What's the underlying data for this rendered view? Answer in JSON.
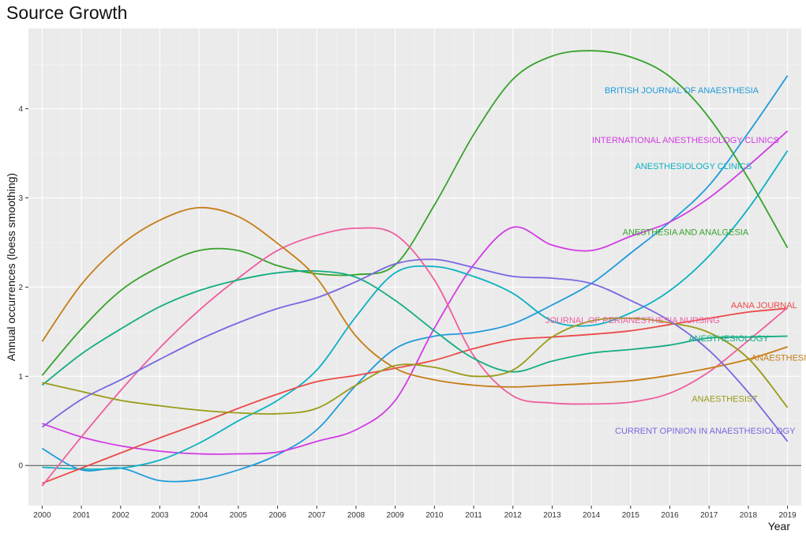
{
  "chart_data": {
    "type": "line",
    "title": "Source Growth",
    "xlabel": "Year",
    "ylabel": "Annual occurrences (loess smoothing)",
    "xlim": [
      1999.65,
      2019.35
    ],
    "ylim": [
      -0.45,
      4.9
    ],
    "x": [
      2000,
      2001,
      2002,
      2003,
      2004,
      2005,
      2006,
      2007,
      2008,
      2009,
      2010,
      2011,
      2012,
      2013,
      2014,
      2015,
      2016,
      2017,
      2018,
      2019
    ],
    "x_tick_labels": [
      "2000",
      "2001",
      "2002",
      "2003",
      "2004",
      "2005",
      "2006",
      "2007",
      "2008",
      "2009",
      "2010",
      "2011",
      "2012",
      "2013",
      "2014",
      "2015",
      "2016",
      "2017",
      "2018",
      "2019"
    ],
    "y_ticks": [
      0,
      1,
      2,
      3,
      4
    ],
    "y_tick_labels": [
      "0",
      "1",
      "2",
      "3",
      "4"
    ],
    "reference_line_y": 0,
    "grid": true,
    "series": [
      {
        "name": "BRITISH JOURNAL OF ANAESTHESIA",
        "color": "#1F9BDB",
        "label_x": 2016.3,
        "label_y": 4.21,
        "values": [
          0.19,
          -0.05,
          -0.03,
          -0.17,
          -0.16,
          -0.05,
          0.12,
          0.4,
          0.9,
          1.31,
          1.45,
          1.49,
          1.59,
          1.8,
          2.04,
          2.38,
          2.73,
          3.14,
          3.73,
          4.37
        ]
      },
      {
        "name": "INTERNATIONAL ANESTHESIOLOGY CLINICS",
        "color": "#D23BE4",
        "label_x": 2016.4,
        "label_y": 3.65,
        "values": [
          0.47,
          0.32,
          0.22,
          0.16,
          0.13,
          0.13,
          0.15,
          0.27,
          0.4,
          0.73,
          1.54,
          2.25,
          2.67,
          2.47,
          2.41,
          2.57,
          2.73,
          3.0,
          3.36,
          3.75
        ]
      },
      {
        "name": "ANESTHESIOLOGY CLINICS",
        "color": "#0CB1C4",
        "label_x": 2016.6,
        "label_y": 3.36,
        "values": [
          -0.02,
          -0.04,
          -0.03,
          0.06,
          0.25,
          0.5,
          0.73,
          1.07,
          1.67,
          2.16,
          2.23,
          2.12,
          1.93,
          1.62,
          1.57,
          1.71,
          1.96,
          2.35,
          2.88,
          3.53
        ]
      },
      {
        "name": "ANESTHESIA AND ANALGESIA",
        "color": "#35A32A",
        "label_x": 2016.4,
        "label_y": 2.62,
        "values": [
          1.01,
          1.53,
          1.96,
          2.23,
          2.41,
          2.41,
          2.24,
          2.15,
          2.14,
          2.25,
          2.92,
          3.71,
          4.33,
          4.59,
          4.65,
          4.58,
          4.36,
          3.9,
          3.22,
          2.44
        ]
      },
      {
        "name": "AANA JOURNAL",
        "color": "#EB4A48",
        "label_x": 2018.4,
        "label_y": 1.8,
        "values": [
          -0.2,
          -0.03,
          0.14,
          0.31,
          0.47,
          0.64,
          0.8,
          0.94,
          1.01,
          1.09,
          1.18,
          1.31,
          1.41,
          1.44,
          1.47,
          1.51,
          1.58,
          1.65,
          1.72,
          1.76
        ]
      },
      {
        "name": "JOURNAL OF PERIANESTHESIA NURSING",
        "color": "#EE5EA0",
        "label_x": 2015.05,
        "label_y": 1.63,
        "values": [
          -0.23,
          0.32,
          0.84,
          1.32,
          1.74,
          2.1,
          2.41,
          2.58,
          2.66,
          2.59,
          2.08,
          1.23,
          0.78,
          0.7,
          0.69,
          0.71,
          0.81,
          1.05,
          1.4,
          1.77
        ]
      },
      {
        "name": "ANESTHESIOLOGY",
        "color": "#12AD84",
        "label_x": 2017.5,
        "label_y": 1.43,
        "values": [
          0.9,
          1.25,
          1.53,
          1.78,
          1.96,
          2.08,
          2.16,
          2.18,
          2.11,
          1.85,
          1.51,
          1.2,
          1.05,
          1.17,
          1.26,
          1.3,
          1.35,
          1.43,
          1.44,
          1.45
        ]
      },
      {
        "name": "ANAESTHESIA",
        "color": "#C67D16",
        "label_x": 2018.85,
        "label_y": 1.21,
        "values": [
          1.39,
          2.03,
          2.47,
          2.75,
          2.89,
          2.79,
          2.49,
          2.1,
          1.45,
          1.09,
          0.96,
          0.9,
          0.88,
          0.9,
          0.92,
          0.95,
          1.01,
          1.09,
          1.19,
          1.33
        ]
      },
      {
        "name": "ANAESTHESIST",
        "color": "#9B9B18",
        "label_x": 2017.4,
        "label_y": 0.75,
        "values": [
          0.93,
          0.83,
          0.73,
          0.67,
          0.62,
          0.59,
          0.58,
          0.64,
          0.9,
          1.12,
          1.1,
          1.0,
          1.07,
          1.44,
          1.62,
          1.65,
          1.6,
          1.49,
          1.2,
          0.65
        ]
      },
      {
        "name": "CURRENT OPINION IN ANAESTHESIOLOGY",
        "color": "#7A67E0",
        "label_x": 2016.9,
        "label_y": 0.39,
        "values": [
          0.43,
          0.74,
          0.96,
          1.19,
          1.41,
          1.6,
          1.76,
          1.88,
          2.06,
          2.26,
          2.31,
          2.22,
          2.12,
          2.1,
          2.04,
          1.85,
          1.62,
          1.29,
          0.82,
          0.27
        ]
      }
    ]
  }
}
